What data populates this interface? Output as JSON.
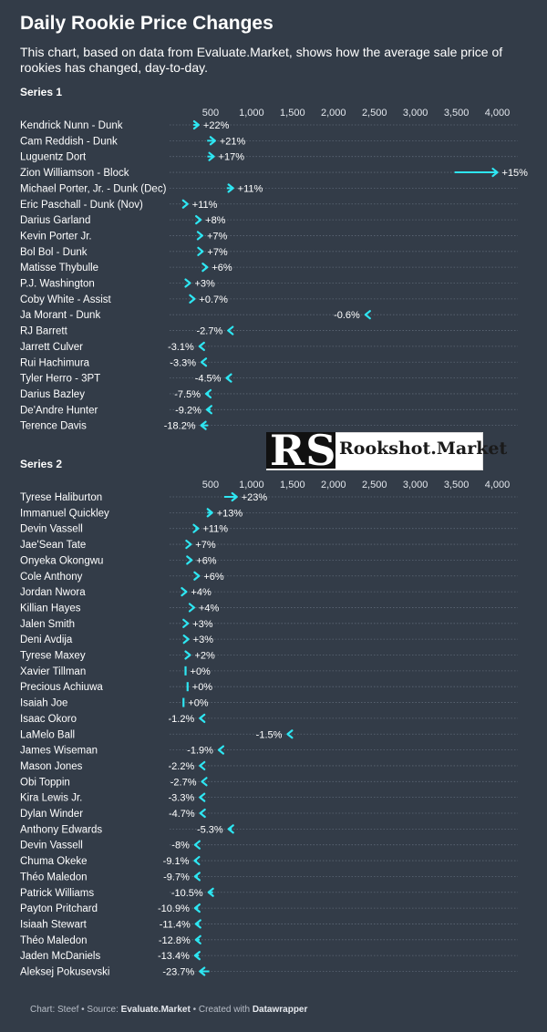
{
  "header": {
    "title": "Daily Rookie Price Changes",
    "subtitle": "This chart, based on data from Evaluate.Market, shows how the average sale price of rookies has changed, day-to-day."
  },
  "watermark": {
    "mark": "RS",
    "text": "Rookshot.Market"
  },
  "footer": {
    "chart_prefix": "Chart: Steef • Source: ",
    "source": "Evaluate.Market",
    "middle": " • Created with ",
    "tool": "Datawrapper"
  },
  "colors": {
    "background": "#333c48",
    "arrow": "#2ee6f2",
    "grid": "#5d6775",
    "text": "#ffffff"
  },
  "chart_data": [
    {
      "type": "arrow-plot",
      "title": "Series 1",
      "xlim": [
        0,
        4250
      ],
      "x_ticks": [
        500,
        1000,
        1500,
        2000,
        2500,
        3000,
        3500,
        4000
      ],
      "x_tick_labels": [
        "500",
        "1,000",
        "1,500",
        "2,000",
        "2,500",
        "3,000",
        "3,500",
        "4,000"
      ],
      "rows": [
        {
          "name": "Kendrick Nunn - Dunk",
          "end": 355,
          "label": "+22%"
        },
        {
          "name": "Cam Reddish - Dunk",
          "end": 555,
          "label": "+21%"
        },
        {
          "name": "Luguentz Dort",
          "end": 540,
          "label": "+17%"
        },
        {
          "name": "Zion Williamson - Block",
          "end": 4000,
          "label": "+15%"
        },
        {
          "name": "Michael Porter, Jr. - Dunk (Dec)",
          "end": 775,
          "label": "+11%"
        },
        {
          "name": "Eric Paschall - Dunk (Nov)",
          "end": 220,
          "label": "+11%"
        },
        {
          "name": "Darius Garland",
          "end": 380,
          "label": "+8%"
        },
        {
          "name": "Kevin Porter Jr.",
          "end": 400,
          "label": "+7%"
        },
        {
          "name": "Bol Bol - Dunk",
          "end": 405,
          "label": "+7%"
        },
        {
          "name": "Matisse Thybulle",
          "end": 460,
          "label": "+6%"
        },
        {
          "name": "P.J. Washington",
          "end": 250,
          "label": "+3%"
        },
        {
          "name": "Coby White - Assist",
          "end": 305,
          "label": "+0.7%"
        },
        {
          "name": "Ja Morant - Dunk",
          "end": 2390,
          "label": "-0.6%"
        },
        {
          "name": "RJ Barrett",
          "end": 715,
          "label": "-2.7%"
        },
        {
          "name": "Jarrett Culver",
          "end": 365,
          "label": "-3.1%"
        },
        {
          "name": "Rui Hachimura",
          "end": 390,
          "label": "-3.3%"
        },
        {
          "name": "Tyler Herro - 3PT",
          "end": 695,
          "label": "-4.5%"
        },
        {
          "name": "Darius Bazley",
          "end": 445,
          "label": "-7.5%"
        },
        {
          "name": "De'Andre Hunter",
          "end": 455,
          "label": "-9.2%"
        },
        {
          "name": "Terence Davis",
          "end": 385,
          "label": "-18.2%"
        }
      ]
    },
    {
      "type": "arrow-plot",
      "title": "Series 2",
      "xlim": [
        0,
        4250
      ],
      "x_ticks": [
        500,
        1000,
        1500,
        2000,
        2500,
        3000,
        3500,
        4000
      ],
      "x_tick_labels": [
        "500",
        "1,000",
        "1,500",
        "2,000",
        "2,500",
        "3,000",
        "3,500",
        "4,000"
      ],
      "rows": [
        {
          "name": "Tyrese Haliburton",
          "end": 820,
          "label": "+23%"
        },
        {
          "name": "Immanuel Quickley",
          "end": 520,
          "label": "+13%"
        },
        {
          "name": "Devin Vassell",
          "end": 350,
          "label": "+11%"
        },
        {
          "name": "Jae'Sean Tate",
          "end": 260,
          "label": "+7%"
        },
        {
          "name": "Onyeka Okongwu",
          "end": 270,
          "label": "+6%"
        },
        {
          "name": "Cole Anthony",
          "end": 360,
          "label": "+6%"
        },
        {
          "name": "Jordan Nwora",
          "end": 205,
          "label": "+4%"
        },
        {
          "name": "Killian Hayes",
          "end": 300,
          "label": "+4%"
        },
        {
          "name": "Jalen Smith",
          "end": 225,
          "label": "+3%"
        },
        {
          "name": "Deni Avdija",
          "end": 230,
          "label": "+3%"
        },
        {
          "name": "Tyrese Maxey",
          "end": 250,
          "label": "+2%"
        },
        {
          "name": "Xavier Tillman",
          "end": 195,
          "label": "+0%"
        },
        {
          "name": "Precious Achiuwa",
          "end": 220,
          "label": "+0%"
        },
        {
          "name": "Isaiah Joe",
          "end": 170,
          "label": "+0%"
        },
        {
          "name": "Isaac Okoro",
          "end": 370,
          "label": "-1.2%"
        },
        {
          "name": "LaMelo Ball",
          "end": 1440,
          "label": "-1.5%"
        },
        {
          "name": "James Wiseman",
          "end": 600,
          "label": "-1.9%"
        },
        {
          "name": "Mason Jones",
          "end": 370,
          "label": "-2.2%"
        },
        {
          "name": "Obi Toppin",
          "end": 395,
          "label": "-2.7%"
        },
        {
          "name": "Kira Lewis Jr.",
          "end": 370,
          "label": "-3.3%"
        },
        {
          "name": "Dylan Winder",
          "end": 375,
          "label": "-4.7%"
        },
        {
          "name": "Anthony Edwards",
          "end": 720,
          "label": "-5.3%"
        },
        {
          "name": "Devin Vassell",
          "end": 310,
          "label": "-8%"
        },
        {
          "name": "Chuma Okeke",
          "end": 305,
          "label": "-9.1%"
        },
        {
          "name": "Théo Maledon",
          "end": 310,
          "label": "-9.7%"
        },
        {
          "name": "Patrick Williams",
          "end": 475,
          "label": "-10.5%"
        },
        {
          "name": "Payton Pritchard",
          "end": 310,
          "label": "-10.9%"
        },
        {
          "name": "Isiaah Stewart",
          "end": 320,
          "label": "-11.4%"
        },
        {
          "name": "Théo Maledon",
          "end": 320,
          "label": "-12.8%"
        },
        {
          "name": "Jaden McDaniels",
          "end": 310,
          "label": "-13.4%"
        },
        {
          "name": "Aleksej Pokusevski",
          "end": 370,
          "label": "-23.7%"
        }
      ]
    }
  ]
}
